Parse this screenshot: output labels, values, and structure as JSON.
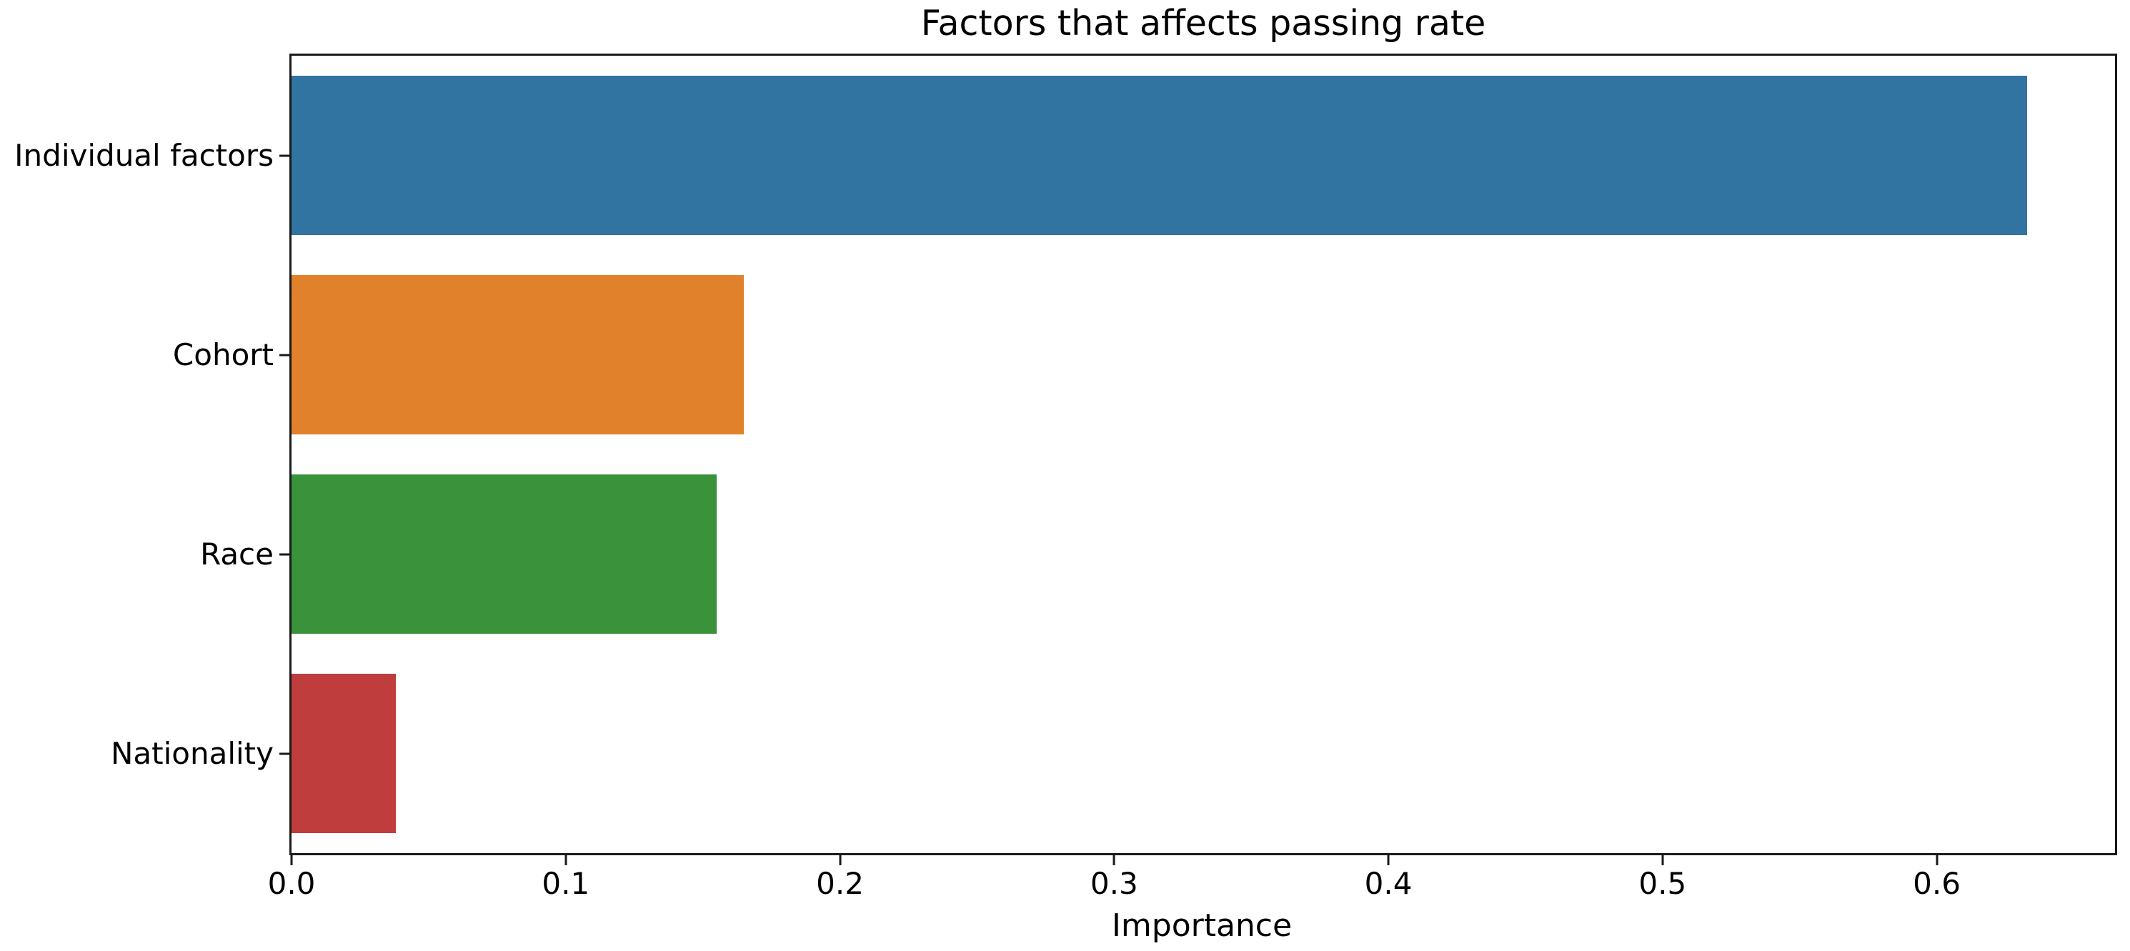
{
  "figure": {
    "background": "#ffffff"
  },
  "chart_data": {
    "type": "bar",
    "orientation": "horizontal",
    "title": "Factors that affects passing rate",
    "xlabel": "Importance",
    "ylabel": "",
    "categories": [
      "Individual factors",
      "Cohort",
      "Race",
      "Nationality"
    ],
    "values": [
      0.633,
      0.165,
      0.155,
      0.038
    ],
    "bar_colors": [
      "#3274a1",
      "#e1812c",
      "#3a923a",
      "#c03d3e"
    ],
    "xlim": [
      0,
      0.665
    ],
    "x_ticks": [
      0,
      0.1,
      0.2,
      0.3,
      0.4,
      0.5,
      0.6
    ],
    "x_tick_labels": [
      "0.0",
      "0.1",
      "0.2",
      "0.3",
      "0.4",
      "0.5",
      "0.6"
    ],
    "grid": false,
    "legend_position": "none",
    "bar_relative_height": 0.8,
    "axis_color": "#1a1a1a",
    "text_color": "#000000"
  }
}
